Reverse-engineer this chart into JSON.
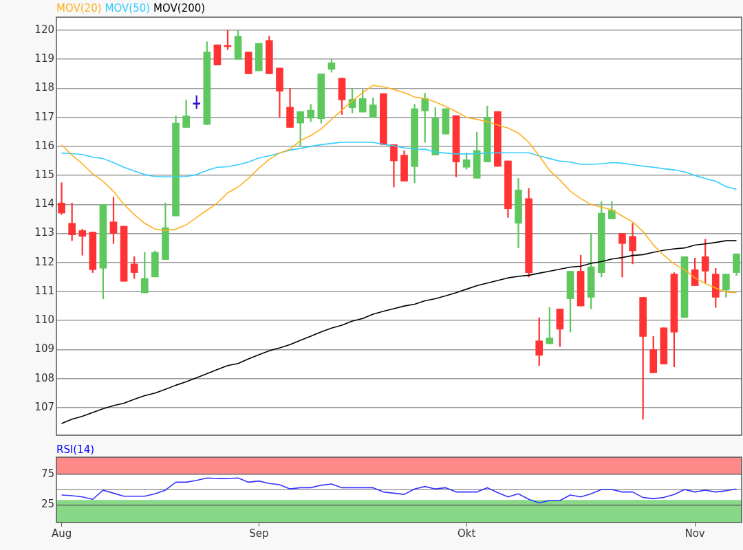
{
  "chart_data": [
    {
      "type": "candlestick",
      "legend": "top left",
      "tick_labels": "y",
      "grid": "y",
      "ylim": [
        106.05,
        120.45
      ],
      "yticks": [
        107,
        108,
        109,
        110,
        111,
        112,
        113,
        114,
        115,
        116,
        117,
        118,
        119,
        120
      ],
      "categories": [
        null,
        null,
        null,
        null,
        null,
        null,
        null,
        null,
        null,
        null,
        null,
        null,
        null,
        null,
        null,
        null,
        null,
        null,
        null,
        null,
        null,
        null,
        null,
        null,
        null,
        null,
        null,
        null,
        null,
        null,
        null,
        null,
        null,
        null,
        null,
        null,
        null,
        null,
        null,
        null,
        null,
        null,
        null,
        null,
        null,
        null,
        null,
        null,
        null,
        null,
        null,
        null,
        null,
        null,
        null,
        null,
        null,
        null,
        null,
        null,
        null,
        null,
        null,
        null,
        null,
        null
      ],
      "ohlc": [
        [
          114.05,
          114.75,
          113.65,
          113.7
        ],
        [
          113.35,
          114.05,
          112.75,
          112.95
        ],
        [
          113.1,
          113.15,
          112.25,
          112.9
        ],
        [
          113.05,
          113.05,
          111.65,
          111.75
        ],
        [
          111.8,
          114.0,
          110.75,
          114.0
        ],
        [
          113.4,
          114.25,
          112.65,
          113.0
        ],
        [
          113.25,
          113.25,
          111.35,
          111.35
        ],
        [
          111.95,
          112.2,
          111.45,
          111.65
        ],
        [
          110.95,
          112.35,
          110.95,
          111.45
        ],
        [
          111.5,
          112.4,
          111.5,
          112.35
        ],
        [
          112.1,
          114.05,
          112.1,
          113.2
        ],
        [
          113.6,
          117.05,
          113.6,
          116.8
        ],
        [
          116.65,
          117.6,
          116.65,
          117.05
        ],
        [
          117.45,
          117.75,
          117.3,
          117.45
        ],
        [
          116.75,
          119.6,
          116.75,
          119.25
        ],
        [
          119.5,
          119.5,
          118.8,
          118.8
        ],
        [
          119.47,
          120.0,
          119.33,
          119.43
        ],
        [
          119.0,
          120.0,
          119.0,
          119.8
        ],
        [
          119.25,
          119.25,
          118.5,
          118.5
        ],
        [
          118.6,
          119.55,
          118.6,
          119.55
        ],
        [
          119.65,
          119.8,
          118.5,
          118.5
        ],
        [
          118.7,
          118.7,
          117.0,
          117.9
        ],
        [
          117.35,
          118.0,
          116.65,
          116.65
        ],
        [
          116.8,
          117.2,
          116.0,
          117.2
        ],
        [
          116.97,
          117.45,
          116.85,
          117.25
        ],
        [
          116.95,
          118.5,
          116.8,
          118.5
        ],
        [
          118.65,
          119.0,
          118.55,
          118.88
        ],
        [
          118.35,
          118.35,
          117.1,
          117.6
        ],
        [
          117.33,
          118.0,
          117.15,
          117.62
        ],
        [
          117.18,
          117.95,
          117.18,
          117.65
        ],
        [
          117.0,
          117.67,
          117.0,
          117.43
        ],
        [
          117.82,
          117.82,
          116.06,
          116.06
        ],
        [
          116.06,
          116.06,
          114.6,
          115.5
        ],
        [
          115.7,
          115.85,
          114.8,
          114.8
        ],
        [
          115.3,
          117.45,
          114.75,
          117.3
        ],
        [
          117.22,
          117.83,
          116.14,
          117.65
        ],
        [
          115.7,
          117.34,
          115.7,
          116.97
        ],
        [
          116.42,
          117.3,
          116.42,
          117.3
        ],
        [
          117.06,
          117.06,
          114.95,
          115.46
        ],
        [
          115.28,
          115.77,
          115.21,
          115.54
        ],
        [
          114.9,
          116.49,
          114.9,
          115.86
        ],
        [
          115.46,
          117.39,
          115.46,
          117.0
        ],
        [
          117.2,
          117.2,
          115.31,
          115.31
        ],
        [
          115.5,
          115.5,
          113.55,
          113.85
        ],
        [
          113.35,
          114.9,
          112.5,
          114.5
        ],
        [
          114.2,
          114.55,
          111.5,
          111.65
        ],
        [
          109.3,
          110.1,
          108.45,
          108.8
        ],
        [
          109.2,
          110.45,
          109.2,
          109.4
        ],
        [
          110.4,
          110.4,
          109.1,
          109.7
        ],
        [
          110.75,
          111.7,
          109.6,
          111.7
        ],
        [
          111.7,
          112.25,
          110.5,
          110.5
        ],
        [
          110.8,
          113.0,
          110.4,
          111.85
        ],
        [
          111.65,
          114.1,
          111.5,
          113.7
        ],
        [
          113.5,
          114.1,
          113.5,
          113.8
        ],
        [
          113.0,
          113.0,
          111.5,
          112.65
        ],
        [
          112.9,
          113.35,
          111.95,
          112.4
        ],
        [
          110.8,
          110.8,
          106.6,
          109.45
        ],
        [
          109.0,
          109.45,
          108.2,
          108.2
        ],
        [
          109.75,
          109.75,
          108.5,
          108.5
        ],
        [
          111.6,
          111.65,
          108.4,
          109.6
        ],
        [
          110.1,
          112.2,
          110.1,
          112.2
        ],
        [
          111.75,
          112.15,
          111.2,
          111.2
        ],
        [
          112.2,
          112.8,
          111.3,
          111.7
        ],
        [
          111.6,
          111.8,
          110.45,
          110.8
        ],
        [
          111.05,
          111.6,
          110.8,
          111.6
        ],
        [
          111.65,
          112.3,
          111.55,
          112.3
        ]
      ],
      "colors": [
        "#ff3333",
        "#ff3333",
        "#ff3333",
        "#ff3333",
        "#5ec85e",
        "#ff3333",
        "#ff3333",
        "#ff3333",
        "#5ec85e",
        "#5ec85e",
        "#5ec85e",
        "#5ec85e",
        "#5ec85e",
        "#3311cc",
        "#5ec85e",
        "#ff3333",
        "#ff3333",
        "#5ec85e",
        "#ff3333",
        "#5ec85e",
        "#ff3333",
        "#ff3333",
        "#ff3333",
        "#5ec85e",
        "#5ec85e",
        "#5ec85e",
        "#5ec85e",
        "#ff3333",
        "#5ec85e",
        "#5ec85e",
        "#5ec85e",
        "#ff3333",
        "#ff3333",
        "#ff3333",
        "#5ec85e",
        "#5ec85e",
        "#5ec85e",
        "#5ec85e",
        "#ff3333",
        "#5ec85e",
        "#5ec85e",
        "#5ec85e",
        "#ff3333",
        "#ff3333",
        "#5ec85e",
        "#ff3333",
        "#ff3333",
        "#5ec85e",
        "#ff3333",
        "#5ec85e",
        "#ff3333",
        "#5ec85e",
        "#5ec85e",
        "#5ec85e",
        "#ff3333",
        "#ff3333",
        "#ff3333",
        "#ff3333",
        "#ff3333",
        "#ff3333",
        "#5ec85e",
        "#ff3333",
        "#ff3333",
        "#ff3333",
        "#5ec85e",
        "#5ec85e"
      ],
      "series": [
        {
          "type": "line",
          "name": "MOV(20)",
          "color": "#ffb020",
          "values": [
            116.05,
            115.7,
            115.4,
            115.05,
            114.8,
            114.45,
            114.0,
            113.65,
            113.35,
            113.15,
            113.1,
            113.15,
            113.3,
            113.55,
            113.8,
            114.05,
            114.4,
            114.6,
            114.9,
            115.25,
            115.55,
            115.77,
            115.9,
            116.2,
            116.37,
            116.6,
            116.93,
            117.25,
            117.57,
            117.85,
            118.1,
            118.05,
            117.96,
            117.85,
            117.7,
            117.65,
            117.53,
            117.37,
            117.2,
            117.0,
            116.93,
            116.85,
            116.74,
            116.63,
            116.46,
            116.14,
            115.67,
            115.17,
            114.84,
            114.45,
            114.2,
            114.0,
            113.9,
            113.82,
            113.6,
            113.4,
            113.07,
            112.6,
            112.25,
            111.95,
            111.75,
            111.47,
            111.28,
            111.12,
            110.98,
            110.96
          ]
        },
        {
          "type": "line",
          "name": "MOV(50)",
          "color": "#33ccff",
          "values": [
            115.77,
            115.75,
            115.72,
            115.63,
            115.58,
            115.44,
            115.28,
            115.15,
            115.03,
            114.96,
            114.95,
            114.95,
            114.96,
            115.03,
            115.17,
            115.28,
            115.3,
            115.37,
            115.46,
            115.6,
            115.67,
            115.77,
            115.87,
            115.93,
            116.0,
            116.06,
            116.1,
            116.14,
            116.14,
            116.14,
            116.14,
            116.07,
            116.02,
            115.95,
            115.91,
            115.9,
            115.8,
            115.77,
            115.74,
            115.74,
            115.75,
            115.77,
            115.78,
            115.78,
            115.78,
            115.78,
            115.67,
            115.58,
            115.49,
            115.46,
            115.38,
            115.38,
            115.4,
            115.44,
            115.42,
            115.37,
            115.32,
            115.28,
            115.23,
            115.19,
            115.12,
            115.0,
            114.89,
            114.8,
            114.61,
            114.52
          ]
        },
        {
          "type": "line",
          "name": "MOV(200)",
          "color": "#000000",
          "values": [
            106.45,
            106.6,
            106.7,
            106.83,
            106.96,
            107.07,
            107.15,
            107.29,
            107.41,
            107.5,
            107.63,
            107.77,
            107.89,
            108.03,
            108.17,
            108.31,
            108.45,
            108.52,
            108.68,
            108.82,
            108.96,
            109.06,
            109.17,
            109.32,
            109.46,
            109.61,
            109.74,
            109.84,
            109.98,
            110.07,
            110.22,
            110.32,
            110.41,
            110.5,
            110.56,
            110.68,
            110.75,
            110.85,
            110.96,
            111.08,
            111.2,
            111.29,
            111.38,
            111.47,
            111.52,
            111.56,
            111.63,
            111.7,
            111.77,
            111.84,
            111.87,
            111.97,
            112.03,
            112.12,
            112.17,
            112.24,
            112.27,
            112.35,
            112.42,
            112.47,
            112.5,
            112.6,
            112.64,
            112.69,
            112.75,
            112.75
          ]
        }
      ]
    },
    {
      "type": "line",
      "title": "RSI(14)",
      "grid": "y",
      "ylim": [
        -4,
        103
      ],
      "yticks": [
        25,
        75
      ],
      "categories": [
        "Aug",
        null,
        null,
        null,
        null,
        null,
        null,
        null,
        null,
        null,
        null,
        null,
        null,
        null,
        null,
        null,
        null,
        null,
        null,
        "Sep",
        null,
        null,
        null,
        null,
        null,
        null,
        null,
        null,
        null,
        null,
        null,
        null,
        null,
        null,
        null,
        null,
        null,
        null,
        null,
        "Okt",
        null,
        null,
        null,
        null,
        null,
        null,
        null,
        null,
        null,
        null,
        null,
        null,
        null,
        null,
        null,
        null,
        null,
        null,
        null,
        null,
        null,
        "Nov",
        null,
        null,
        null,
        null
      ],
      "bands": [
        {
          "axis": "y",
          "from": 75,
          "to": 103,
          "color": "#ff8888"
        },
        {
          "axis": "y",
          "from": -4,
          "to": 33,
          "color": "#88d888"
        }
      ],
      "ref_lines": [
        {
          "axis": "y",
          "value": 50,
          "color": "#999999"
        }
      ],
      "series": [
        {
          "color": "#3333ff",
          "values": [
            41,
            40,
            38,
            34,
            49,
            44,
            39,
            39,
            39,
            43,
            49,
            62,
            62,
            65,
            69,
            68,
            68,
            69,
            62,
            64,
            60,
            58,
            51,
            53,
            53,
            57,
            59,
            53,
            53,
            53,
            53,
            46,
            44,
            42,
            51,
            55,
            51,
            53,
            46,
            46,
            46,
            53,
            45,
            38,
            43,
            34,
            28,
            32,
            32,
            41,
            38,
            43,
            50,
            50,
            46,
            46,
            37,
            35,
            37,
            42,
            50,
            46,
            49,
            46,
            48,
            51
          ]
        }
      ]
    }
  ]
}
